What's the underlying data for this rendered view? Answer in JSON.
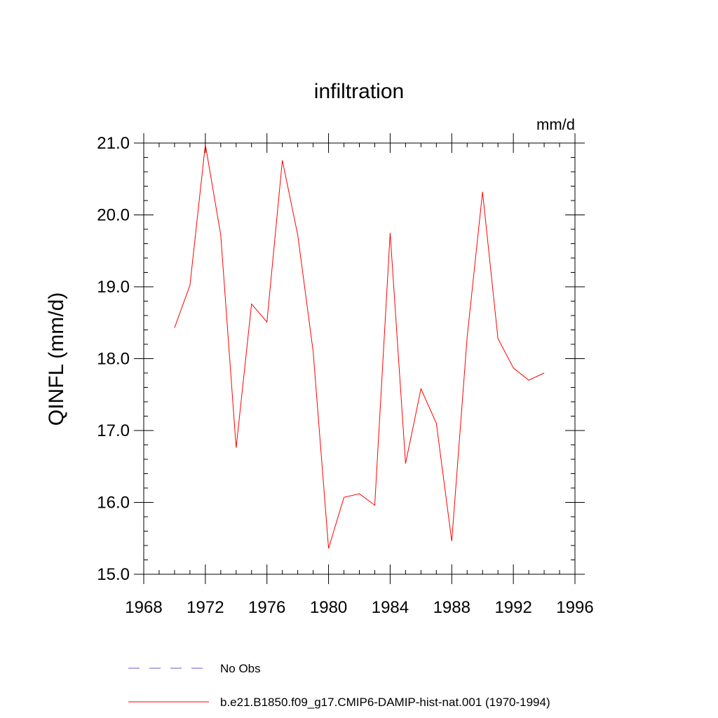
{
  "chart_data": {
    "type": "line",
    "title": "infiltration",
    "units": "mm/d",
    "ylabel": "QINFL  (mm/d)",
    "xlabel": "",
    "xlim": [
      1968,
      1996
    ],
    "ylim": [
      15.0,
      21.0
    ],
    "xticks": [
      1968,
      1972,
      1976,
      1980,
      1984,
      1988,
      1992,
      1996
    ],
    "xtick_labels": [
      "1968",
      "1972",
      "1976",
      "1980",
      "1984",
      "1988",
      "1992",
      "1996"
    ],
    "yticks": [
      15.0,
      16.0,
      17.0,
      18.0,
      19.0,
      20.0,
      21.0
    ],
    "ytick_labels": [
      "15.0",
      "16.0",
      "17.0",
      "18.0",
      "19.0",
      "20.0",
      "21.0"
    ],
    "grid": false,
    "legend_position": "bottom",
    "series": [
      {
        "name": "No Obs",
        "style": "dashed",
        "color": "#6a5acd",
        "x": [],
        "values": []
      },
      {
        "name": "b.e21.B1850.f09_g17.CMIP6-DAMIP-hist-nat.001 (1970-1994)",
        "style": "solid",
        "color": "#ff0000",
        "x": [
          1970,
          1971,
          1972,
          1973,
          1974,
          1975,
          1976,
          1977,
          1978,
          1979,
          1980,
          1981,
          1982,
          1983,
          1984,
          1985,
          1986,
          1987,
          1988,
          1989,
          1990,
          1991,
          1992,
          1993,
          1994
        ],
        "values": [
          18.43,
          19.02,
          20.98,
          19.72,
          16.76,
          18.76,
          18.51,
          20.76,
          19.72,
          18.1,
          15.36,
          16.07,
          16.12,
          15.96,
          19.75,
          16.54,
          17.58,
          17.1,
          15.46,
          18.3,
          20.32,
          18.28,
          17.87,
          17.7,
          17.8
        ]
      }
    ]
  }
}
